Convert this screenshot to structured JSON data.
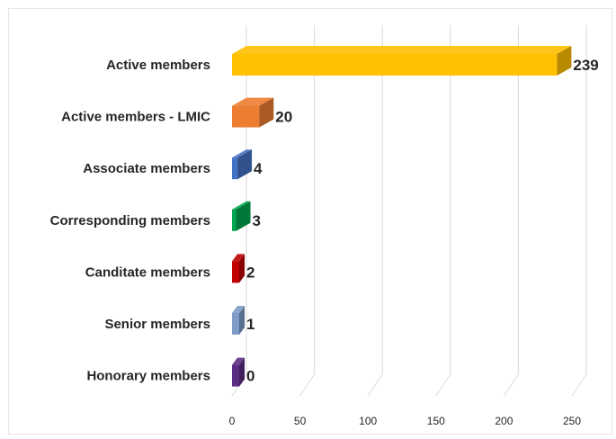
{
  "chart_data": {
    "type": "bar",
    "orientation": "horizontal",
    "style": "3d",
    "categories": [
      "Active members",
      "Active members - LMIC",
      "Associate members",
      "Corresponding members",
      "Canditate members",
      "Senior members",
      "Honorary members"
    ],
    "values": [
      239,
      20,
      4,
      3,
      2,
      1,
      0
    ],
    "value_labels": [
      "239",
      "20",
      "4",
      "3",
      "2",
      "1",
      "0"
    ],
    "colors": [
      "#FFC000",
      "#ED7D31",
      "#4472C4",
      "#00A651",
      "#C00000",
      "#7F9BC7",
      "#5B2C83"
    ],
    "x_ticks": [
      "0",
      "50",
      "100",
      "150",
      "200",
      "250"
    ],
    "xlim": [
      0,
      250
    ],
    "title": "",
    "xlabel": "",
    "ylabel": "",
    "grid": true,
    "legend": "none"
  }
}
